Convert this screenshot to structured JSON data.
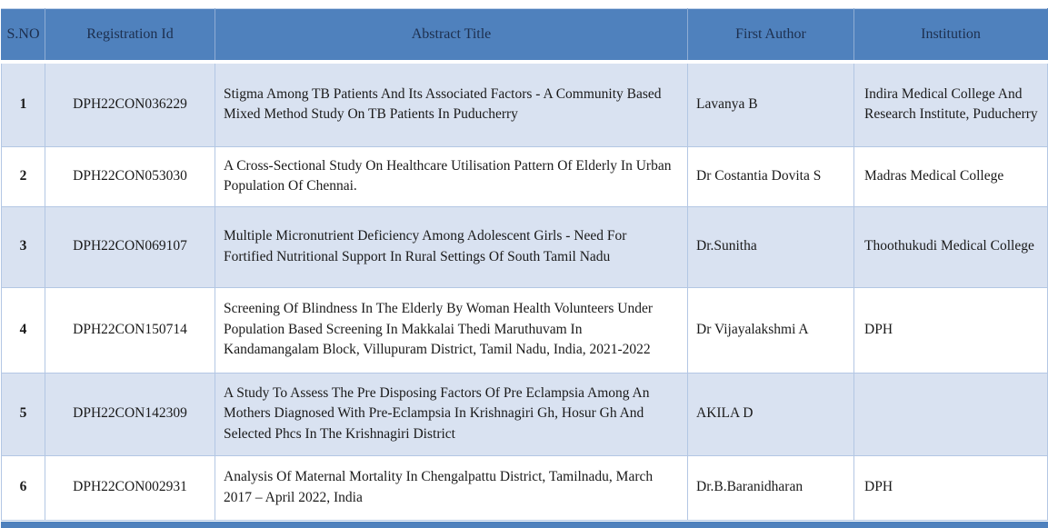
{
  "colors": {
    "header_bg": "#4F81BD",
    "header_text": "#1D2F4E",
    "banded_row_bg": "#D9E2F1",
    "plain_row_bg": "#FFFFFF",
    "grid_border": "#B3C7E4",
    "body_text": "#1A1A1A"
  },
  "table": {
    "columns": {
      "sno": "S.NO",
      "registration_id": "Registration Id",
      "abstract_title": "Abstract Title",
      "first_author": "First Author",
      "institution": "Institution"
    },
    "rows": [
      {
        "sno": "1",
        "registration_id": "DPH22CON036229",
        "abstract_title": "Stigma Among TB Patients And Its Associated Factors - A Community Based Mixed Method Study On TB Patients In Puducherry",
        "first_author": "Lavanya B",
        "institution": "Indira Medical College And Research Institute, Puducherry"
      },
      {
        "sno": "2",
        "registration_id": "DPH22CON053030",
        "abstract_title": "A Cross-Sectional Study On Healthcare Utilisation Pattern Of Elderly In Urban Population Of Chennai.",
        "first_author": "Dr Costantia Dovita S",
        "institution": "Madras Medical College"
      },
      {
        "sno": "3",
        "registration_id": "DPH22CON069107",
        "abstract_title": "Multiple Micronutrient Deficiency Among Adolescent Girls - Need For Fortified Nutritional Support In Rural Settings Of South Tamil Nadu",
        "first_author": "Dr.Sunitha",
        "institution": "Thoothukudi Medical College"
      },
      {
        "sno": "4",
        "registration_id": "DPH22CON150714",
        "abstract_title": "Screening Of Blindness In The Elderly By Woman Health Volunteers Under Population Based Screening In Makkalai Thedi Maruthuvam In Kandamangalam Block, Villupuram District, Tamil Nadu, India, 2021-2022",
        "first_author": "Dr Vijayalakshmi A",
        "institution": "DPH"
      },
      {
        "sno": "5",
        "registration_id": "DPH22CON142309",
        "abstract_title": "A  Study To Assess The Pre Disposing Factors Of Pre Eclampsia Among An Mothers Diagnosed With Pre-Eclampsia In Krishnagiri Gh, Hosur Gh And Selected Phcs In The Krishnagiri District",
        "first_author": "AKILA D",
        "institution": ""
      },
      {
        "sno": "6",
        "registration_id": "DPH22CON002931",
        "abstract_title": "Analysis Of Maternal Mortality In Chengalpattu District, Tamilnadu, March 2017 – April 2022, India",
        "first_author": "Dr.B.Baranidharan",
        "institution": "DPH"
      }
    ]
  }
}
